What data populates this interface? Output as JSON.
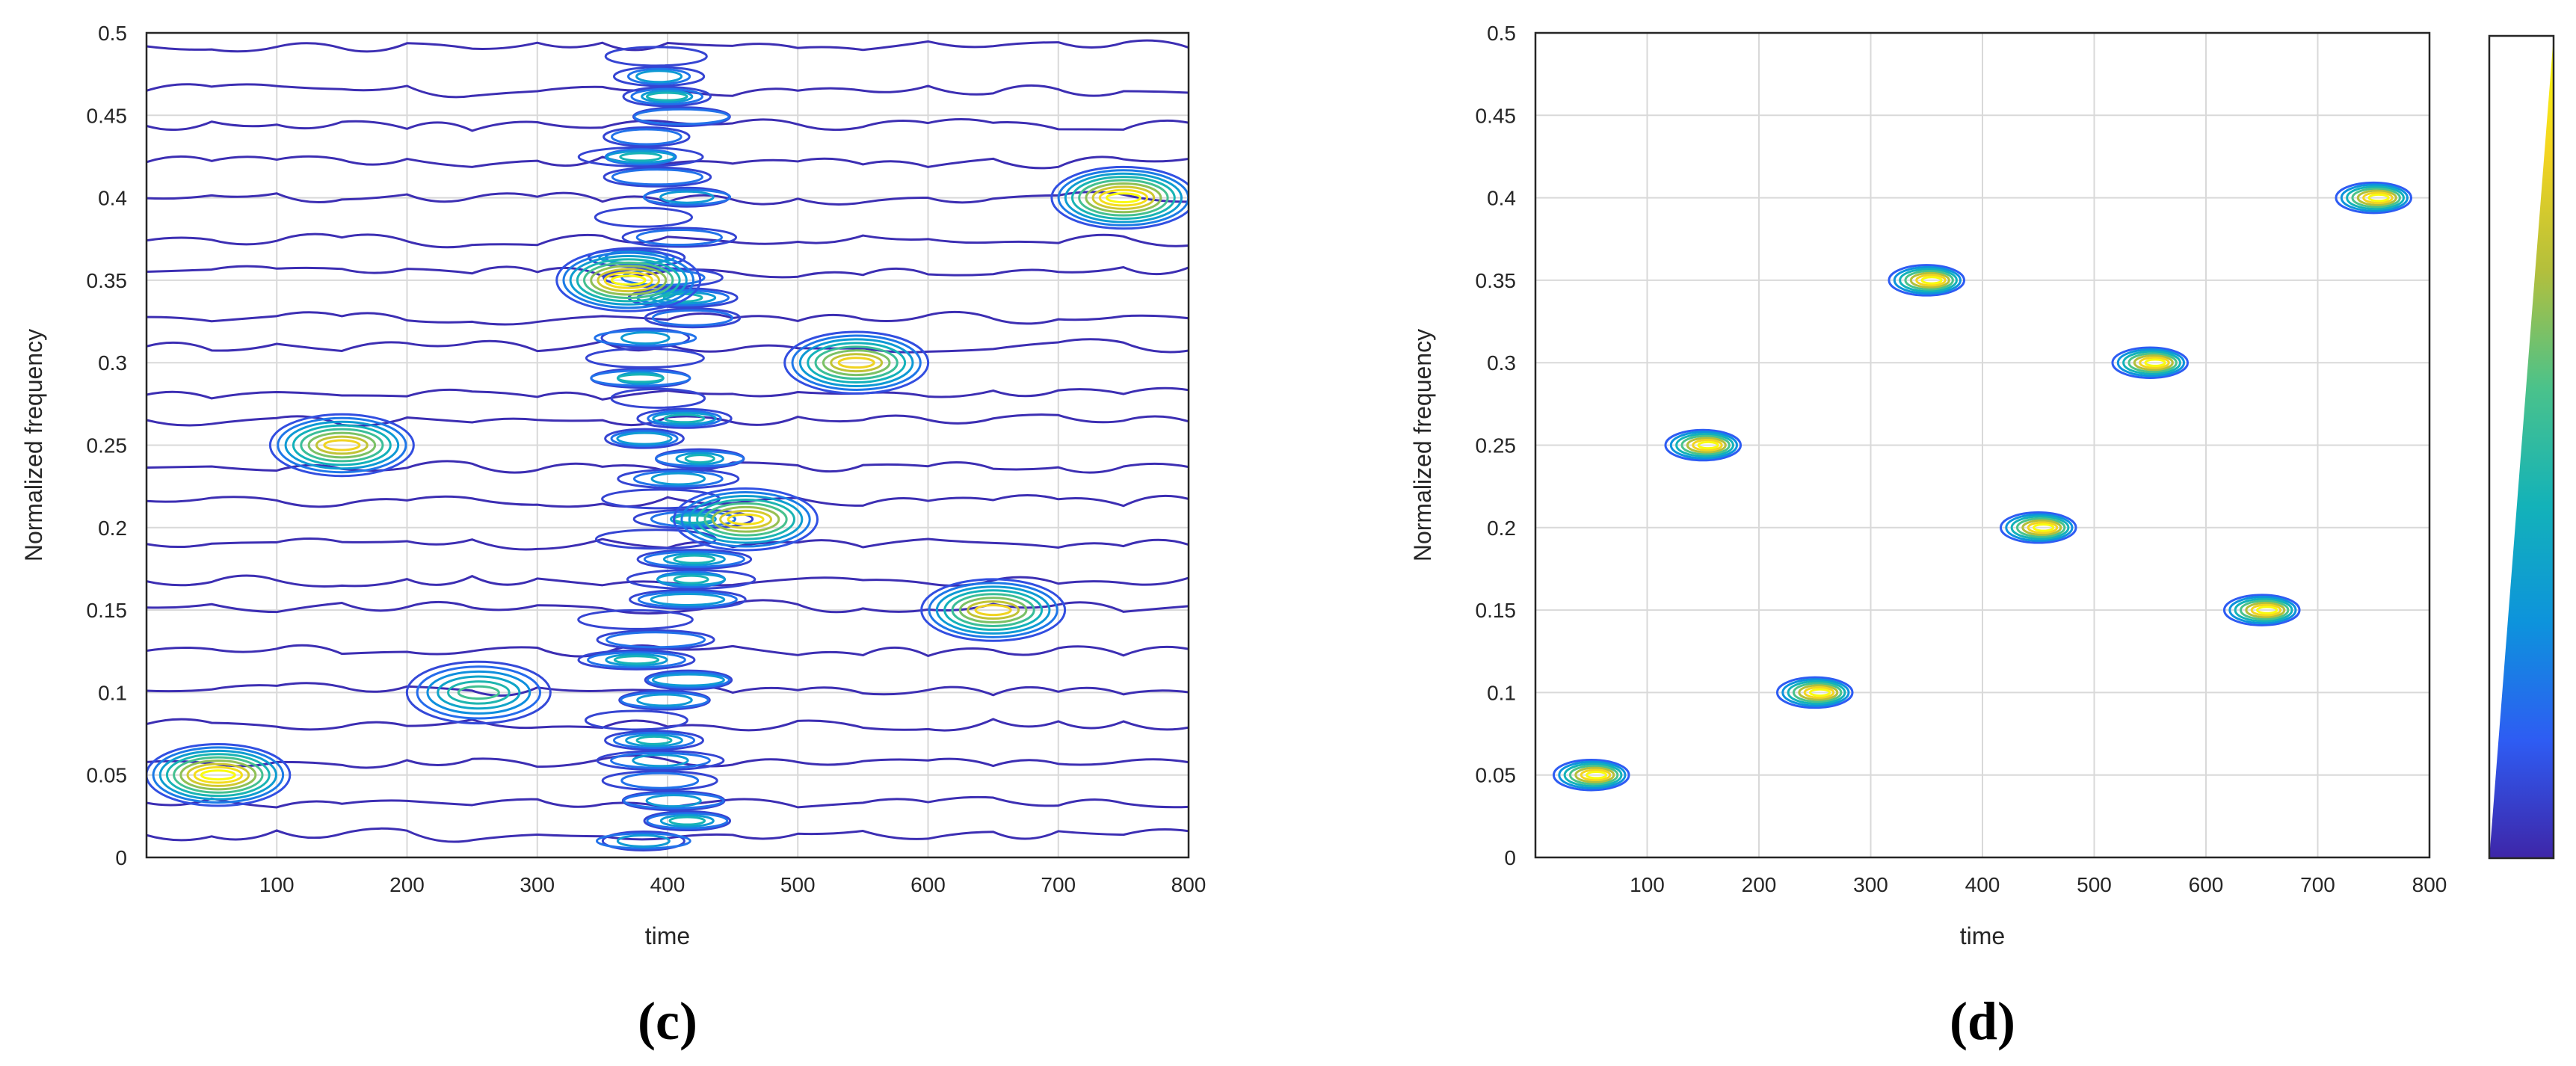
{
  "chart_data": [
    {
      "type": "contour",
      "panel_label": "(c)",
      "xlabel": "time",
      "ylabel": "Normalized frequency",
      "xlim": [
        0,
        800
      ],
      "ylim": [
        0,
        0.5
      ],
      "xticks": [
        "100",
        "200",
        "300",
        "400",
        "500",
        "600",
        "700",
        "800"
      ],
      "yticks": [
        "0",
        "0.05",
        "0.1",
        "0.15",
        "0.2",
        "0.25",
        "0.3",
        "0.35",
        "0.4",
        "0.45",
        "0.5"
      ],
      "grid": true,
      "components": [
        {
          "time": 55,
          "freq": 0.05,
          "peak": 1.0
        },
        {
          "time": 255,
          "freq": 0.1,
          "peak": 0.55
        },
        {
          "time": 650,
          "freq": 0.15,
          "peak": 0.85
        },
        {
          "time": 460,
          "freq": 0.205,
          "peak": 0.9
        },
        {
          "time": 150,
          "freq": 0.25,
          "peak": 0.85
        },
        {
          "time": 545,
          "freq": 0.3,
          "peak": 0.85
        },
        {
          "time": 370,
          "freq": 0.35,
          "peak": 1.0
        },
        {
          "time": 750,
          "freq": 0.4,
          "peak": 1.0
        }
      ],
      "background_noise": "broadband cross-terms near time 400"
    },
    {
      "type": "contour",
      "panel_label": "(d)",
      "xlabel": "time",
      "ylabel": "Normalized frequency",
      "xlim": [
        0,
        800
      ],
      "ylim": [
        0,
        0.5
      ],
      "xticks": [
        "100",
        "200",
        "300",
        "400",
        "500",
        "600",
        "700",
        "800"
      ],
      "yticks": [
        "0",
        "0.05",
        "0.1",
        "0.15",
        "0.2",
        "0.25",
        "0.3",
        "0.35",
        "0.4",
        "0.45",
        "0.5"
      ],
      "grid": true,
      "colorbar": true,
      "components": [
        {
          "time": 50,
          "freq": 0.05,
          "peak": 1.0
        },
        {
          "time": 250,
          "freq": 0.1,
          "peak": 1.0
        },
        {
          "time": 650,
          "freq": 0.15,
          "peak": 1.0
        },
        {
          "time": 450,
          "freq": 0.2,
          "peak": 1.0
        },
        {
          "time": 150,
          "freq": 0.25,
          "peak": 1.0
        },
        {
          "time": 550,
          "freq": 0.3,
          "peak": 1.0
        },
        {
          "time": 350,
          "freq": 0.35,
          "peak": 1.0
        },
        {
          "time": 750,
          "freq": 0.4,
          "peak": 1.0
        }
      ]
    }
  ],
  "colors": {
    "colormap": [
      "#3e26a8",
      "#2e5cf3",
      "#0d93dc",
      "#13b2b9",
      "#4ac28b",
      "#b3bf3c",
      "#f3d420",
      "#f9fb0e"
    ],
    "axis": "#262626",
    "grid": "#d9d9d9"
  }
}
